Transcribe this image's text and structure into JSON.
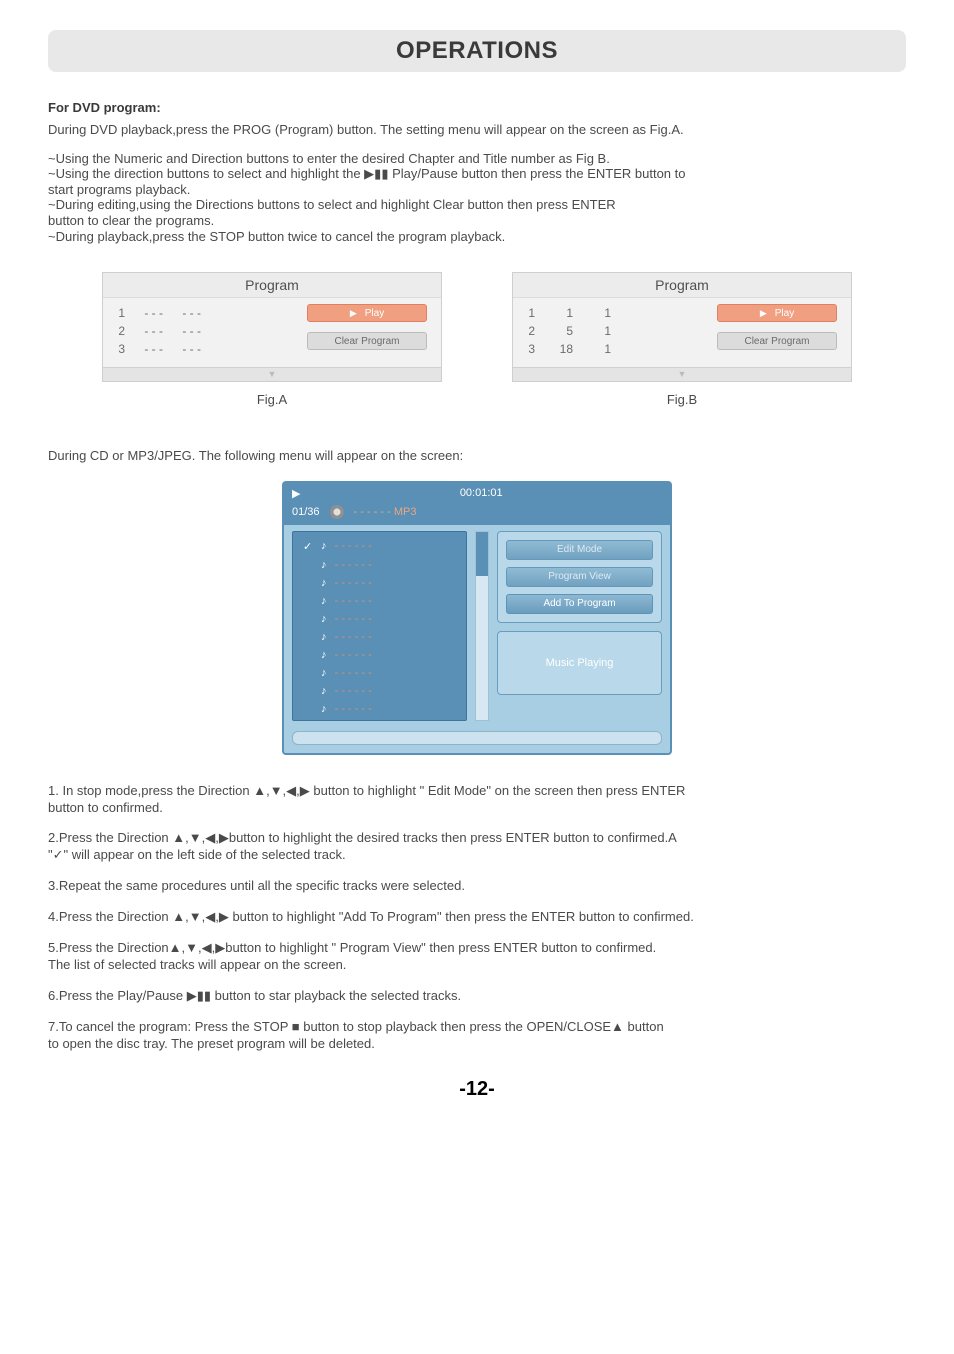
{
  "page": {
    "title": "OPERATIONS",
    "page_number": "-12-"
  },
  "dvd_section": {
    "heading": "For DVD program:",
    "intro": "During DVD playback,press the PROG (Program) button. The setting menu will appear on the screen as Fig.A.",
    "bullets": [
      "~Using  the  Numeric and Direction buttons  to  enter  the  desired  Chapter  and  Title  number  as  Fig B.",
      "~Using the direction buttons to select and highlight the ▶▮▮ Play/Pause button then press the ENTER button to",
      "  start programs playback.",
      "~During editing,using the Directions buttons  to select and highlight Clear button then press ENTER",
      "  button to clear the programs.",
      "~During playback,press the STOP button twice to cancel the program playback."
    ]
  },
  "figA": {
    "title": "Program",
    "label": "Fig.A",
    "rows": [
      {
        "idx": "1",
        "c1": "- - -",
        "c2": "- - -"
      },
      {
        "idx": "2",
        "c1": "- - -",
        "c2": "- - -"
      },
      {
        "idx": "3",
        "c1": "- - -",
        "c2": "- - -"
      }
    ],
    "play": "Play",
    "clear": "Clear  Program"
  },
  "figB": {
    "title": "Program",
    "label": "Fig.B",
    "rows": [
      {
        "idx": "1",
        "c1": "1",
        "c2": "1"
      },
      {
        "idx": "2",
        "c1": "5",
        "c2": "1"
      },
      {
        "idx": "3",
        "c1": "18",
        "c2": "1"
      }
    ],
    "play": "Play",
    "clear": "Clear  Program"
  },
  "cd_section": {
    "intro": "During CD or MP3/JPEG.  The following menu will appear on the screen:"
  },
  "mp3": {
    "time": "00:01:01",
    "counter": "01/36",
    "format": "- - - - - - MP3",
    "tracks_count": 10,
    "track_placeholder": "- - - - - -",
    "menu": {
      "edit": "Edit  Mode",
      "program_view": "Program View",
      "add": "Add To Program"
    },
    "status": "Music Playing",
    "colors": {
      "panel_bg": "#a8cee4",
      "panel_border": "#5a8fb6",
      "header_bg": "#5a8fb6",
      "track_text": "#d9926f"
    }
  },
  "steps": {
    "s1": "1.  In stop mode,press the Direction ▲,▼,◀,▶ button to highlight \" Edit Mode\"  on the screen then press ENTER\n    button to confirmed.",
    "s2": "2.Press the Direction ▲,▼,◀,▶button to highlight the desired tracks then press ENTER button to confirmed.A\n   \"✓\" will appear on the left side of the selected track.",
    "s3": "3.Repeat the same  procedures until all the specific tracks were selected.",
    "s4": "4.Press the Direction ▲,▼,◀,▶ button to highlight \"Add To Program\" then press the ENTER button to confirmed.",
    "s5": "5.Press the Direction▲,▼,◀,▶button to highlight \" Program View\" then press ENTER button to confirmed.\n   The list of selected tracks will appear on the screen.",
    "s6": "6.Press the Play/Pause ▶▮▮ button to star playback the selected tracks.",
    "s7": "7.To cancel the program: Press the STOP ■ button to stop playback then press the OPEN/CLOSE▲  button\n   to open the disc tray. The preset program will be deleted."
  }
}
